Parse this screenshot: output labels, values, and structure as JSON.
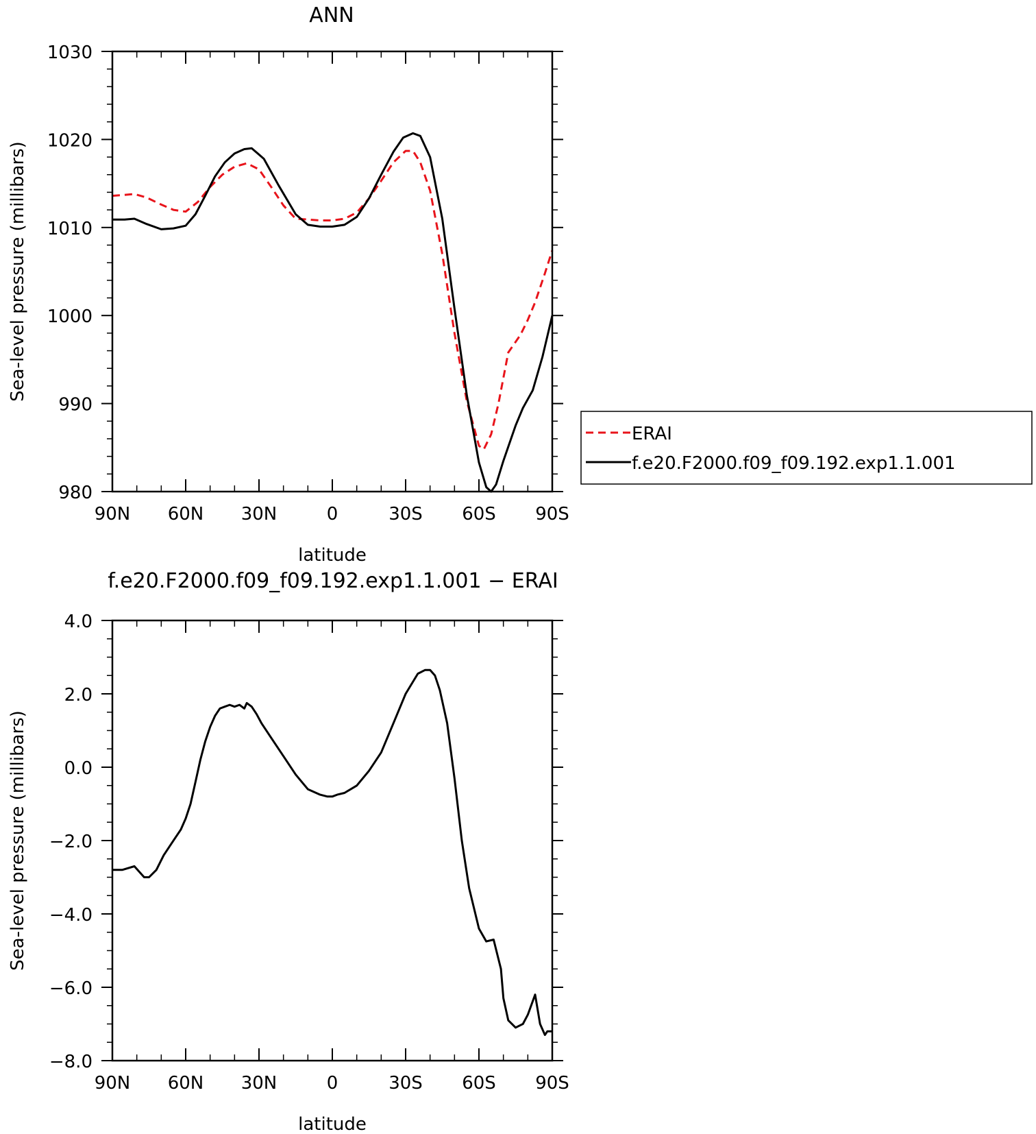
{
  "chart_data": [
    {
      "type": "line",
      "title": "ANN",
      "xlabel": "latitude",
      "ylabel": "Sea-level pressure (millibars)",
      "xlim": [
        90,
        -90
      ],
      "ylim": [
        980,
        1030
      ],
      "x_ticks": [
        90,
        60,
        30,
        0,
        -30,
        -60,
        -90
      ],
      "x_tick_labels": [
        "90N",
        "60N",
        "30N",
        "0",
        "30S",
        "60S",
        "90S"
      ],
      "y_ticks": [
        980,
        990,
        1000,
        1010,
        1020,
        1030
      ],
      "y_tick_labels": [
        "980",
        "990",
        "1000",
        "1010",
        "1020",
        "1030"
      ],
      "legend": {
        "placement": "right",
        "entries": [
          "ERAI",
          "f.e20.F2000.f09_f09.192.exp1.1.001"
        ]
      },
      "series": [
        {
          "name": "ERAI",
          "color": "#e8141b",
          "dash": "dashed",
          "x": [
            90,
            85,
            81,
            76,
            70,
            65,
            60,
            55,
            50,
            45,
            40,
            35,
            30,
            25,
            20,
            15,
            10,
            5,
            0,
            -5,
            -10,
            -15,
            -20,
            -25,
            -30,
            -33,
            -36,
            -40,
            -45,
            -50,
            -55,
            -60,
            -62,
            -65,
            -68,
            -72,
            -77,
            -80,
            -83,
            -87,
            -90
          ],
          "y": [
            1013.6,
            1013.7,
            1013.8,
            1013.4,
            1012.6,
            1012.0,
            1011.8,
            1012.9,
            1014.6,
            1016.0,
            1016.9,
            1017.3,
            1016.6,
            1014.6,
            1012.5,
            1011.0,
            1010.9,
            1010.8,
            1010.8,
            1011.0,
            1011.7,
            1013.3,
            1015.3,
            1017.4,
            1018.7,
            1018.7,
            1017.4,
            1014.2,
            1007.0,
            998.0,
            990.3,
            985.2,
            984.8,
            986.5,
            990.0,
            995.8,
            997.8,
            999.5,
            1001.5,
            1004.8,
            1007.4
          ]
        },
        {
          "name": "f.e20.F2000.f09_f09.192.exp1.1.001",
          "color": "#000000",
          "dash": "solid",
          "x": [
            90,
            85,
            81,
            76,
            70,
            65,
            60,
            56,
            52,
            48,
            44,
            40,
            36,
            33,
            28,
            22,
            15,
            10,
            5,
            0,
            -5,
            -10,
            -15,
            -20,
            -25,
            -29,
            -33,
            -36,
            -40,
            -45,
            -50,
            -55,
            -60,
            -63,
            -65,
            -67,
            -70,
            -75,
            -78,
            -82,
            -86,
            -90
          ],
          "y": [
            1010.9,
            1010.9,
            1011.0,
            1010.4,
            1009.8,
            1009.9,
            1010.2,
            1011.5,
            1013.6,
            1015.8,
            1017.4,
            1018.4,
            1018.9,
            1019.0,
            1017.8,
            1014.8,
            1011.5,
            1010.3,
            1010.1,
            1010.1,
            1010.3,
            1011.2,
            1013.3,
            1016.0,
            1018.6,
            1020.2,
            1020.7,
            1020.4,
            1018.0,
            1011.0,
            1000.8,
            991.0,
            983.3,
            980.5,
            980.0,
            980.8,
            983.5,
            987.5,
            989.5,
            991.5,
            995.3,
            1000.0
          ]
        }
      ]
    },
    {
      "type": "line",
      "title": "f.e20.F2000.f09_f09.192.exp1.1.001 − ERAI",
      "xlabel": "latitude",
      "ylabel": "Sea-level pressure (millibars)",
      "xlim": [
        90,
        -90
      ],
      "ylim": [
        -8.0,
        4.0
      ],
      "x_ticks": [
        90,
        60,
        30,
        0,
        -30,
        -60,
        -90
      ],
      "x_tick_labels": [
        "90N",
        "60N",
        "30N",
        "0",
        "30S",
        "60S",
        "90S"
      ],
      "y_ticks": [
        -8.0,
        -6.0,
        -4.0,
        -2.0,
        0.0,
        2.0,
        4.0
      ],
      "y_tick_labels": [
        "−8.0",
        "−6.0",
        "−4.0",
        "−2.0",
        "0.0",
        "2.0",
        "4.0"
      ],
      "series": [
        {
          "color": "#000000",
          "dash": "solid",
          "x": [
            90,
            86,
            81,
            77,
            75,
            72,
            69,
            66,
            64,
            62,
            60,
            58,
            56,
            54,
            52,
            50,
            48,
            46,
            44,
            42,
            40,
            38,
            36,
            35,
            33,
            31,
            29,
            25,
            20,
            15,
            10,
            5,
            2,
            0,
            -2,
            -5,
            -10,
            -15,
            -20,
            -25,
            -30,
            -35,
            -38,
            -40,
            -42,
            -44,
            -47,
            -50,
            -53,
            -56,
            -60,
            -63,
            -66,
            -69,
            -70,
            -72,
            -75,
            -78,
            -80,
            -83,
            -85,
            -87,
            -88,
            -90
          ],
          "y": [
            -2.8,
            -2.8,
            -2.7,
            -3.0,
            -3.0,
            -2.8,
            -2.4,
            -2.1,
            -1.9,
            -1.7,
            -1.4,
            -1.0,
            -0.4,
            0.2,
            0.7,
            1.1,
            1.4,
            1.6,
            1.65,
            1.7,
            1.65,
            1.7,
            1.6,
            1.75,
            1.65,
            1.45,
            1.2,
            0.8,
            0.3,
            -0.2,
            -0.6,
            -0.75,
            -0.8,
            -0.8,
            -0.75,
            -0.7,
            -0.5,
            -0.1,
            0.4,
            1.2,
            2.0,
            2.55,
            2.65,
            2.65,
            2.5,
            2.1,
            1.2,
            -0.3,
            -2.0,
            -3.3,
            -4.4,
            -4.75,
            -4.7,
            -5.5,
            -6.3,
            -6.9,
            -7.1,
            -7.0,
            -6.75,
            -6.2,
            -7.0,
            -7.3,
            -7.2,
            -7.2
          ]
        }
      ]
    }
  ]
}
